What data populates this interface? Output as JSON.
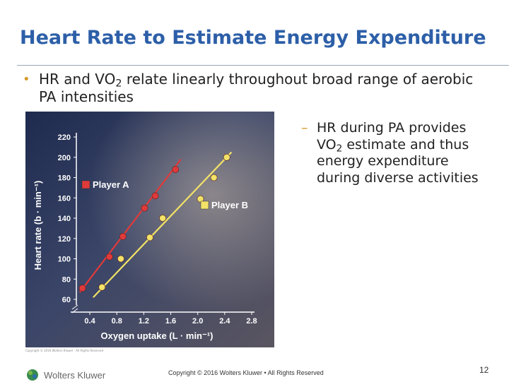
{
  "slide": {
    "title": "Heart Rate to Estimate Energy Expenditure",
    "bullet_pre": "HR and VO",
    "bullet_sub": "2",
    "bullet_post": " relate linearly throughout broad range of aerobic PA intensities",
    "subbullet_pre": "HR during PA provides VO",
    "subbullet_sub": "2",
    "subbullet_post": " estimate and thus energy expenditure during diverse activities",
    "footer": "Copyright © 2016 Wolters Kluwer • All Rights Reserved",
    "page_number": "12",
    "logo_text": "Wolters Kluwer",
    "photo_credit": "Copyright © 2016 Wolters Kluwer · All Rights Reserved"
  },
  "colors": {
    "title": "#2d5fa8",
    "bullet_marker": "#d69a2e",
    "player_a": "#e03a3a",
    "player_b": "#f2e267",
    "plot_background": "#2a3558"
  },
  "chart_data": {
    "type": "line",
    "title": "",
    "xlabel": "Oxygen uptake (L · min⁻¹)",
    "ylabel": "Heart rate (b · min⁻¹)",
    "xlim": [
      0.2,
      2.8
    ],
    "ylim": [
      60,
      220
    ],
    "x_ticks": [
      "0.4",
      "0.8",
      "1.2",
      "1.6",
      "2.0",
      "2.4",
      "2.8"
    ],
    "y_ticks": [
      "60",
      "80",
      "100",
      "120",
      "140",
      "160",
      "180",
      "200",
      "220"
    ],
    "legend_position": "inside",
    "grid": false,
    "series": [
      {
        "name": "Player A",
        "marker": "square",
        "points": [
          {
            "x": 0.29,
            "y": 71
          },
          {
            "x": 0.69,
            "y": 102
          },
          {
            "x": 0.89,
            "y": 122
          },
          {
            "x": 1.21,
            "y": 150
          },
          {
            "x": 1.37,
            "y": 162
          },
          {
            "x": 1.67,
            "y": 188
          }
        ],
        "fit": [
          {
            "x": 0.25,
            "y": 67
          },
          {
            "x": 1.75,
            "y": 198
          }
        ]
      },
      {
        "name": "Player B",
        "marker": "square",
        "points": [
          {
            "x": 0.58,
            "y": 72
          },
          {
            "x": 0.86,
            "y": 100
          },
          {
            "x": 1.29,
            "y": 121
          },
          {
            "x": 1.48,
            "y": 140
          },
          {
            "x": 2.04,
            "y": 159
          },
          {
            "x": 2.24,
            "y": 180
          },
          {
            "x": 2.43,
            "y": 200
          }
        ],
        "fit": [
          {
            "x": 0.45,
            "y": 62
          },
          {
            "x": 2.5,
            "y": 205
          }
        ]
      }
    ]
  }
}
